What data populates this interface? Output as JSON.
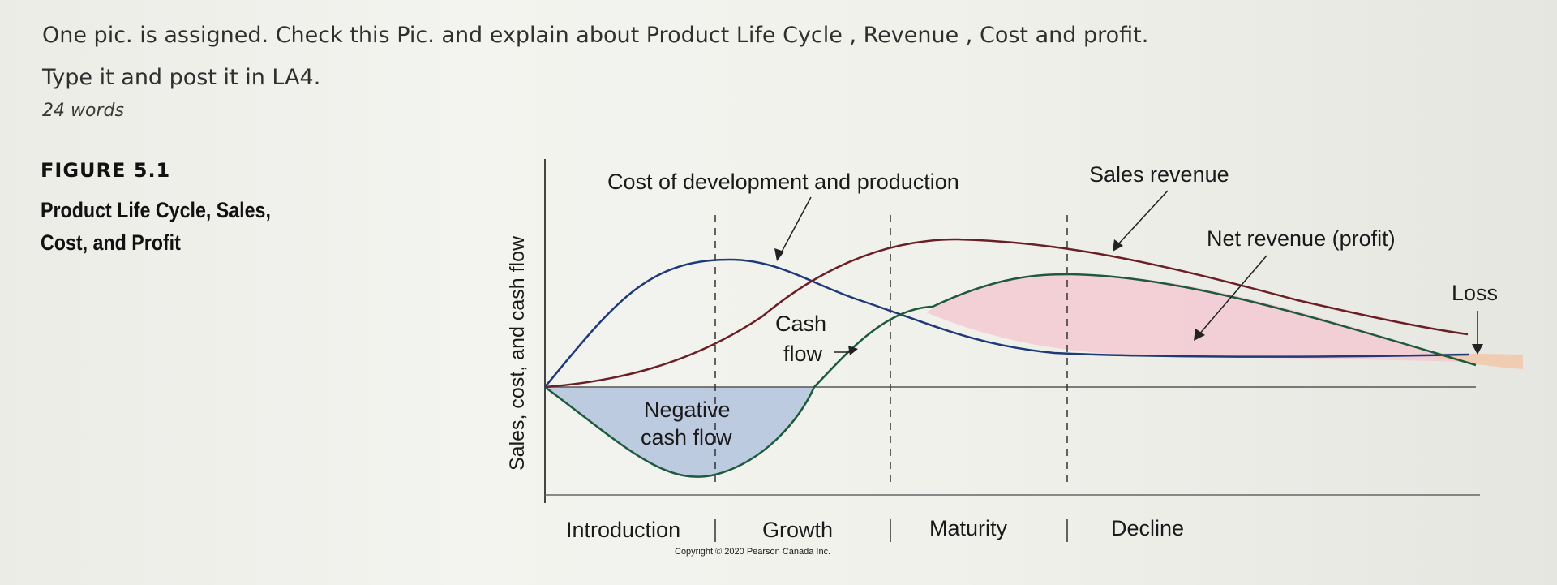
{
  "question": {
    "line1": "One pic. is assigned. Check this Pic. and explain about Product Life Cycle , Revenue , Cost and profit.",
    "line2": "Type it and post it in LA4.",
    "word_count": "24 words"
  },
  "figure": {
    "label": "FIGURE 5.1",
    "title_line1": "Product Life Cycle, Sales,",
    "title_line2": "Cost, and Profit",
    "y_axis_label": "Sales, cost, and cash flow",
    "annotations": {
      "cost": "Cost of development and production",
      "sales": "Sales revenue",
      "net": "Net revenue (profit)",
      "loss": "Loss",
      "cash_flow_1": "Cash",
      "cash_flow_2": "flow",
      "negative_1": "Negative",
      "negative_2": "cash flow"
    },
    "stages": [
      "Introduction",
      "Growth",
      "Maturity",
      "Decline"
    ],
    "copyright": "Copyright © 2020 Pearson Canada Inc."
  },
  "colors": {
    "cost_curve": "#1f3a78",
    "sales_curve": "#6b1f24",
    "cashflow_curve": "#1d5a3c",
    "profit_fill": "#f3c9d2",
    "negative_fill": "#a9bedb",
    "axis": "#444444"
  }
}
